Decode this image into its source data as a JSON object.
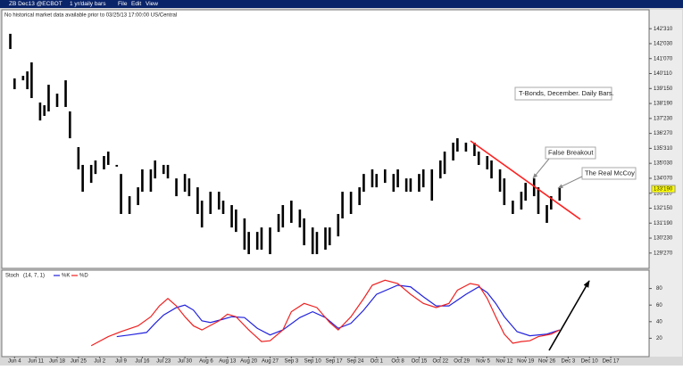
{
  "menu": {
    "symbol": "ZB Dec13 @ECBOT",
    "interval": "1 yr/daily bars",
    "items": [
      "File",
      "Edit",
      "View"
    ]
  },
  "notice": "No historical market data available prior to 03/25/13 17:00:00 US/Central",
  "chart_data": [
    {
      "type": "ohlc",
      "color": "#000000",
      "annotations": [
        "T-Bonds, December. Daily Bars.",
        "False Breakout",
        "The Real McCoy"
      ],
      "x": [
        0,
        1,
        3,
        4,
        5,
        7,
        8,
        9,
        11,
        13,
        14,
        16,
        17,
        19,
        20,
        22,
        23,
        25,
        26,
        28,
        30,
        31,
        33,
        34,
        36,
        37,
        39,
        41,
        42,
        44,
        45,
        47,
        49,
        50,
        52,
        53,
        55,
        56,
        58,
        59,
        61,
        63,
        64,
        66,
        68,
        69,
        71,
        72,
        74,
        75,
        77,
        78,
        80,
        82,
        83,
        85,
        86,
        88,
        90,
        91,
        93,
        94,
        96,
        97,
        99,
        101,
        102,
        104,
        105,
        107,
        109,
        110,
        112,
        113,
        115,
        116,
        118,
        120,
        121,
        123,
        124,
        126,
        127,
        129
      ],
      "high": [
        142.67,
        140.06,
        140.21,
        140.47,
        141.0,
        138.65,
        138.49,
        139.69,
        139.17,
        139.95,
        138.13,
        136.04,
        135.0,
        135.0,
        135.26,
        135.52,
        135.78,
        135.0,
        134.47,
        133.17,
        133.69,
        134.74,
        134.74,
        135.26,
        135.0,
        135.0,
        134.21,
        134.47,
        134.21,
        133.69,
        132.91,
        133.43,
        133.43,
        132.91,
        132.65,
        132.39,
        131.87,
        131.08,
        131.08,
        131.34,
        131.34,
        132.13,
        132.65,
        132.91,
        132.39,
        131.87,
        131.34,
        131.08,
        131.34,
        131.34,
        132.13,
        133.43,
        133.43,
        133.69,
        134.47,
        134.74,
        134.47,
        134.74,
        134.47,
        134.74,
        134.21,
        134.21,
        134.47,
        134.74,
        134.74,
        135.26,
        135.78,
        136.3,
        136.56,
        136.3,
        136.3,
        135.78,
        135.52,
        135.26,
        134.74,
        134.21,
        132.91,
        133.43,
        133.95,
        134.21,
        133.69,
        132.65,
        133.17,
        133.69
      ],
      "low": [
        141.78,
        139.43,
        139.95,
        139.43,
        138.91,
        137.6,
        137.87,
        138.13,
        138.39,
        138.39,
        136.56,
        134.74,
        133.43,
        133.95,
        134.47,
        134.74,
        135.0,
        134.9,
        132.13,
        132.13,
        132.65,
        133.43,
        133.43,
        134.21,
        134.47,
        134.21,
        133.17,
        133.43,
        133.17,
        132.13,
        131.34,
        132.13,
        132.39,
        132.13,
        131.34,
        131.08,
        130.04,
        129.78,
        130.04,
        130.04,
        129.78,
        131.08,
        131.34,
        131.61,
        131.34,
        130.3,
        129.78,
        129.78,
        130.04,
        130.3,
        130.82,
        131.87,
        132.13,
        132.65,
        133.43,
        133.69,
        133.69,
        133.95,
        133.43,
        133.69,
        133.43,
        133.43,
        133.43,
        133.69,
        132.91,
        134.21,
        134.47,
        135.26,
        135.78,
        135.78,
        135.52,
        135.0,
        134.74,
        134.21,
        133.43,
        132.65,
        132.13,
        132.39,
        132.91,
        133.17,
        132.13,
        131.61,
        132.39,
        132.91
      ],
      "xlim": [
        -2,
        150
      ],
      "ylim": [
        129.0,
        143.5
      ],
      "yticks": [
        {
          "value": 142.96875,
          "label": "142'310"
        },
        {
          "value": 142.09375,
          "label": "142'030"
        },
        {
          "value": 141.21875,
          "label": "141'070"
        },
        {
          "value": 140.34375,
          "label": "140'110"
        },
        {
          "value": 139.46875,
          "label": "139'150"
        },
        {
          "value": 138.59375,
          "label": "138'190"
        },
        {
          "value": 137.71875,
          "label": "137'230"
        },
        {
          "value": 136.84375,
          "label": "136'270"
        },
        {
          "value": 135.96875,
          "label": "135'310"
        },
        {
          "value": 135.09375,
          "label": "135'030"
        },
        {
          "value": 134.21875,
          "label": "134'070"
        },
        {
          "value": 133.34375,
          "label": "133'110"
        },
        {
          "value": 132.46875,
          "label": "132'150"
        },
        {
          "value": 131.59375,
          "label": "131'190"
        },
        {
          "value": 130.71875,
          "label": "130'230"
        },
        {
          "value": 129.84375,
          "label": "129'270"
        }
      ],
      "last_price": {
        "value": 133.59375,
        "label": "133'190"
      }
    },
    {
      "type": "line",
      "title": "Stoch",
      "params": "(14, 7, 1)",
      "series": [
        {
          "name": "%K",
          "color": "#2222dd",
          "x": [
            25,
            28,
            32,
            34,
            36,
            39,
            41,
            43,
            45,
            47,
            50,
            52,
            55,
            58,
            61,
            64,
            68,
            71,
            74,
            77,
            80,
            83,
            86,
            91,
            94,
            97,
            100,
            103,
            107,
            110,
            112,
            114,
            116,
            119,
            122,
            126,
            129
          ],
          "values": [
            22,
            24,
            27,
            38,
            48,
            57,
            60,
            54,
            41,
            39,
            43,
            46,
            45,
            32,
            24,
            30,
            45,
            52,
            45,
            32,
            38,
            54,
            73,
            84,
            82,
            70,
            59,
            59,
            73,
            82,
            75,
            62,
            46,
            28,
            23,
            25,
            30
          ]
        },
        {
          "name": "%D",
          "color": "#ee2222",
          "x": [
            19,
            23,
            26,
            30,
            33,
            35,
            37,
            39,
            41,
            43,
            45,
            49,
            51,
            53,
            56,
            59,
            61,
            64,
            66,
            69,
            72,
            75,
            77,
            80,
            83,
            85,
            88,
            91,
            94,
            97,
            100,
            103,
            105,
            108,
            110,
            112,
            114,
            116,
            118,
            120,
            122,
            124,
            127,
            129
          ],
          "values": [
            11,
            22,
            28,
            35,
            46,
            59,
            68,
            59,
            46,
            35,
            30,
            41,
            49,
            46,
            30,
            16,
            17,
            30,
            52,
            62,
            57,
            39,
            30,
            46,
            68,
            84,
            90,
            86,
            73,
            62,
            57,
            62,
            78,
            86,
            84,
            68,
            46,
            25,
            14,
            16,
            17,
            22,
            25,
            30
          ]
        }
      ],
      "xlim": [
        -2,
        150
      ],
      "ylim": [
        0,
        100
      ],
      "yticks": [
        20,
        40,
        60,
        80
      ],
      "xticks": [
        {
          "value": 1,
          "label": "Jun 4"
        },
        {
          "value": 6,
          "label": "Jun 11"
        },
        {
          "value": 11,
          "label": "Jun 18"
        },
        {
          "value": 16,
          "label": "Jun 25"
        },
        {
          "value": 21,
          "label": "Jul 2"
        },
        {
          "value": 26,
          "label": "Jul 9"
        },
        {
          "value": 31,
          "label": "Jul 16"
        },
        {
          "value": 36,
          "label": "Jul 23"
        },
        {
          "value": 41,
          "label": "Jul 30"
        },
        {
          "value": 46,
          "label": "Aug 6"
        },
        {
          "value": 51,
          "label": "Aug 13"
        },
        {
          "value": 56,
          "label": "Aug 20"
        },
        {
          "value": 61,
          "label": "Aug 27"
        },
        {
          "value": 66,
          "label": "Sep 3"
        },
        {
          "value": 71,
          "label": "Sep 10"
        },
        {
          "value": 76,
          "label": "Sep 17"
        },
        {
          "value": 81,
          "label": "Sep 24"
        },
        {
          "value": 86,
          "label": "Oct 1"
        },
        {
          "value": 91,
          "label": "Oct 8"
        },
        {
          "value": 96,
          "label": "Oct 15"
        },
        {
          "value": 101,
          "label": "Oct 22"
        },
        {
          "value": 106,
          "label": "Oct 29"
        },
        {
          "value": 111,
          "label": "Nov 5"
        },
        {
          "value": 116,
          "label": "Nov 12"
        },
        {
          "value": 121,
          "label": "Nov 19"
        },
        {
          "value": 126,
          "label": "Nov 26"
        },
        {
          "value": 131,
          "label": "Dec 3"
        },
        {
          "value": 136,
          "label": "Dec 10"
        },
        {
          "value": 141,
          "label": "Dec 17"
        }
      ]
    }
  ]
}
